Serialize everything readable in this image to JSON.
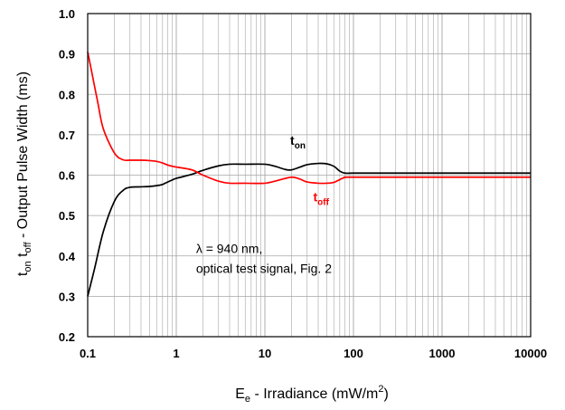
{
  "chart_data": {
    "type": "line",
    "xscale": "log",
    "xlim": [
      0.1,
      10000
    ],
    "ylim": [
      0.2,
      1.0
    ],
    "grid": true,
    "xlabel": {
      "main": "E",
      "sub": "e",
      "rest": " - Irradiance (mW/m",
      "sup": "2",
      "close": ")"
    },
    "ylabel": {
      "p1": "t",
      "s1": "on",
      "p2": " t",
      "s2": "off",
      "rest": " - Output Pulse Width (ms)"
    },
    "x_ticks": [
      {
        "value": 0.1,
        "label": "0.1"
      },
      {
        "value": 1,
        "label": "1"
      },
      {
        "value": 10,
        "label": "10"
      },
      {
        "value": 100,
        "label": "100"
      },
      {
        "value": 1000,
        "label": "1000"
      },
      {
        "value": 10000,
        "label": "10000"
      }
    ],
    "y_ticks": [
      {
        "value": 0.2,
        "label": "0.2"
      },
      {
        "value": 0.3,
        "label": "0.3"
      },
      {
        "value": 0.4,
        "label": "0.4"
      },
      {
        "value": 0.5,
        "label": "0.5"
      },
      {
        "value": 0.6,
        "label": "0.6"
      },
      {
        "value": 0.7,
        "label": "0.7"
      },
      {
        "value": 0.8,
        "label": "0.8"
      },
      {
        "value": 0.9,
        "label": "0.9"
      },
      {
        "value": 1.0,
        "label": "1.0"
      }
    ],
    "series": [
      {
        "name": "t_on",
        "label_main": "t",
        "label_sub": "on",
        "color": "#000000",
        "label_at": {
          "x": 11,
          "y": 0.675
        },
        "x": [
          0.1,
          0.12,
          0.15,
          0.2,
          0.25,
          0.3,
          0.4,
          0.5,
          0.6,
          0.7,
          0.8,
          0.9,
          1.0,
          1.5,
          2,
          3,
          4,
          6,
          10,
          13,
          17,
          20,
          25,
          30,
          40,
          50,
          60,
          70,
          80,
          100,
          200,
          1000,
          10000
        ],
        "y": [
          0.3,
          0.37,
          0.46,
          0.535,
          0.562,
          0.57,
          0.571,
          0.572,
          0.574,
          0.577,
          0.583,
          0.588,
          0.592,
          0.602,
          0.612,
          0.623,
          0.627,
          0.627,
          0.627,
          0.622,
          0.614,
          0.613,
          0.62,
          0.626,
          0.629,
          0.628,
          0.622,
          0.61,
          0.605,
          0.605,
          0.605,
          0.605,
          0.605
        ]
      },
      {
        "name": "t_off",
        "label_main": "t",
        "label_sub": "off",
        "color": "#ff0000",
        "label_at": {
          "x": 20,
          "y": 0.535
        },
        "x": [
          0.1,
          0.11,
          0.13,
          0.15,
          0.2,
          0.25,
          0.3,
          0.4,
          0.5,
          0.6,
          0.7,
          0.8,
          0.9,
          1.0,
          1.5,
          2,
          3,
          4,
          6,
          10,
          14,
          20,
          25,
          30,
          40,
          50,
          60,
          70,
          80,
          100,
          1000,
          10000
        ],
        "y": [
          0.905,
          0.86,
          0.78,
          0.715,
          0.655,
          0.638,
          0.637,
          0.637,
          0.636,
          0.634,
          0.63,
          0.625,
          0.622,
          0.62,
          0.613,
          0.6,
          0.585,
          0.58,
          0.58,
          0.58,
          0.587,
          0.595,
          0.59,
          0.583,
          0.58,
          0.58,
          0.582,
          0.589,
          0.594,
          0.595,
          0.595,
          0.595
        ]
      }
    ],
    "annotation": {
      "line1": "λ = 940 nm,",
      "line2": "optical test signal, Fig. 2",
      "x": 0.95,
      "y": 0.38
    }
  }
}
